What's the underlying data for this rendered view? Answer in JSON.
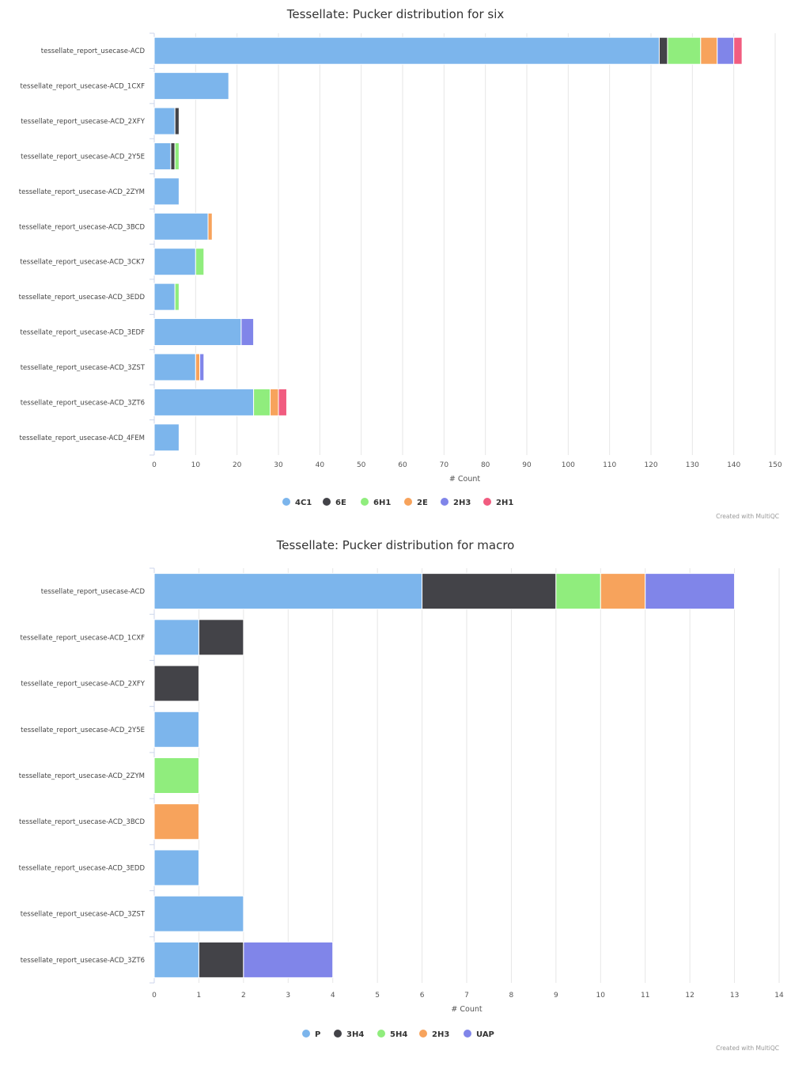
{
  "chart_data": [
    {
      "type": "bar",
      "orientation": "horizontal",
      "stacked": true,
      "title": "Tessellate: Pucker distribution for six",
      "xlabel": "# Count",
      "ylabel": "",
      "xlim": [
        0,
        150
      ],
      "xticks": [
        0,
        10,
        20,
        30,
        40,
        50,
        60,
        70,
        80,
        90,
        100,
        110,
        120,
        130,
        140,
        150
      ],
      "grid": true,
      "legend": "bottom-center",
      "credits": "Created with MultiQC",
      "categories": [
        "tessellate_report_usecase-ACD",
        "tessellate_report_usecase-ACD_1CXF",
        "tessellate_report_usecase-ACD_2XFY",
        "tessellate_report_usecase-ACD_2Y5E",
        "tessellate_report_usecase-ACD_2ZYM",
        "tessellate_report_usecase-ACD_3BCD",
        "tessellate_report_usecase-ACD_3CK7",
        "tessellate_report_usecase-ACD_3EDD",
        "tessellate_report_usecase-ACD_3EDF",
        "tessellate_report_usecase-ACD_3ZST",
        "tessellate_report_usecase-ACD_3ZT6",
        "tessellate_report_usecase-ACD_4FEM"
      ],
      "series": [
        {
          "name": "4C1",
          "color": "#7cb5ec",
          "values": [
            122,
            18,
            5,
            4,
            6,
            13,
            10,
            5,
            21,
            10,
            24,
            6
          ]
        },
        {
          "name": "6E",
          "color": "#434348",
          "values": [
            2,
            0,
            1,
            1,
            0,
            0,
            0,
            0,
            0,
            0,
            0,
            0
          ]
        },
        {
          "name": "6H1",
          "color": "#90ed7d",
          "values": [
            8,
            0,
            0,
            1,
            0,
            0,
            2,
            1,
            0,
            0,
            4,
            0
          ]
        },
        {
          "name": "2E",
          "color": "#f7a35c",
          "values": [
            4,
            0,
            0,
            0,
            0,
            1,
            0,
            0,
            0,
            1,
            2,
            0
          ]
        },
        {
          "name": "2H3",
          "color": "#8085e9",
          "values": [
            4,
            0,
            0,
            0,
            0,
            0,
            0,
            0,
            3,
            1,
            0,
            0
          ]
        },
        {
          "name": "2H1",
          "color": "#f15c80",
          "values": [
            2,
            0,
            0,
            0,
            0,
            0,
            0,
            0,
            0,
            0,
            2,
            0
          ]
        }
      ]
    },
    {
      "type": "bar",
      "orientation": "horizontal",
      "stacked": true,
      "title": "Tessellate: Pucker distribution for macro",
      "xlabel": "# Count",
      "ylabel": "",
      "xlim": [
        0,
        14
      ],
      "xticks": [
        0,
        1,
        2,
        3,
        4,
        5,
        6,
        7,
        8,
        9,
        10,
        11,
        12,
        13,
        14
      ],
      "grid": true,
      "legend": "bottom-center",
      "credits": "Created with MultiQC",
      "categories": [
        "tessellate_report_usecase-ACD",
        "tessellate_report_usecase-ACD_1CXF",
        "tessellate_report_usecase-ACD_2XFY",
        "tessellate_report_usecase-ACD_2Y5E",
        "tessellate_report_usecase-ACD_2ZYM",
        "tessellate_report_usecase-ACD_3BCD",
        "tessellate_report_usecase-ACD_3EDD",
        "tessellate_report_usecase-ACD_3ZST",
        "tessellate_report_usecase-ACD_3ZT6"
      ],
      "series": [
        {
          "name": "P",
          "color": "#7cb5ec",
          "values": [
            6,
            1,
            0,
            1,
            0,
            0,
            1,
            2,
            1
          ]
        },
        {
          "name": "3H4",
          "color": "#434348",
          "values": [
            3,
            1,
            1,
            0,
            0,
            0,
            0,
            0,
            1
          ]
        },
        {
          "name": "5H4",
          "color": "#90ed7d",
          "values": [
            1,
            0,
            0,
            0,
            1,
            0,
            0,
            0,
            0
          ]
        },
        {
          "name": "2H3",
          "color": "#f7a35c",
          "values": [
            1,
            0,
            0,
            0,
            0,
            1,
            0,
            0,
            0
          ]
        },
        {
          "name": "UAP",
          "color": "#8085e9",
          "values": [
            2,
            0,
            0,
            0,
            0,
            0,
            0,
            0,
            2
          ]
        }
      ]
    }
  ]
}
